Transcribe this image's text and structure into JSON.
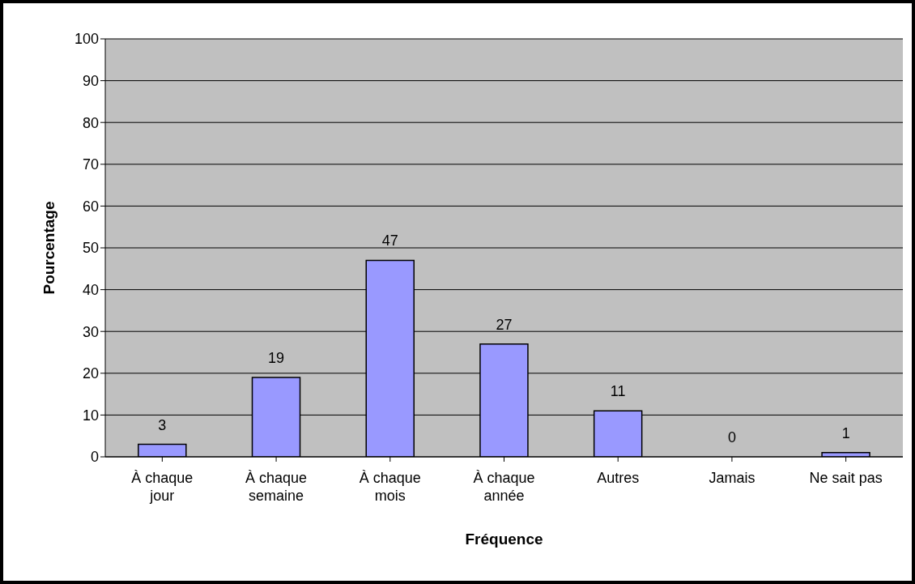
{
  "chart_data": {
    "type": "bar",
    "xlabel": "Fréquence",
    "ylabel": "Pourcentage",
    "categories": [
      "À chaque jour",
      "À chaque semaine",
      "À chaque mois",
      "À chaque année",
      "Autres",
      "Jamais",
      "Ne sait pas"
    ],
    "values": [
      3,
      19,
      47,
      27,
      11,
      0,
      1
    ],
    "color": "#9999ff",
    "ylim": [
      0,
      100
    ],
    "yticks": [
      0,
      10,
      20,
      30,
      40,
      50,
      60,
      70,
      80,
      90,
      100
    ],
    "grid": "y",
    "data_labels": true,
    "legend": false
  }
}
